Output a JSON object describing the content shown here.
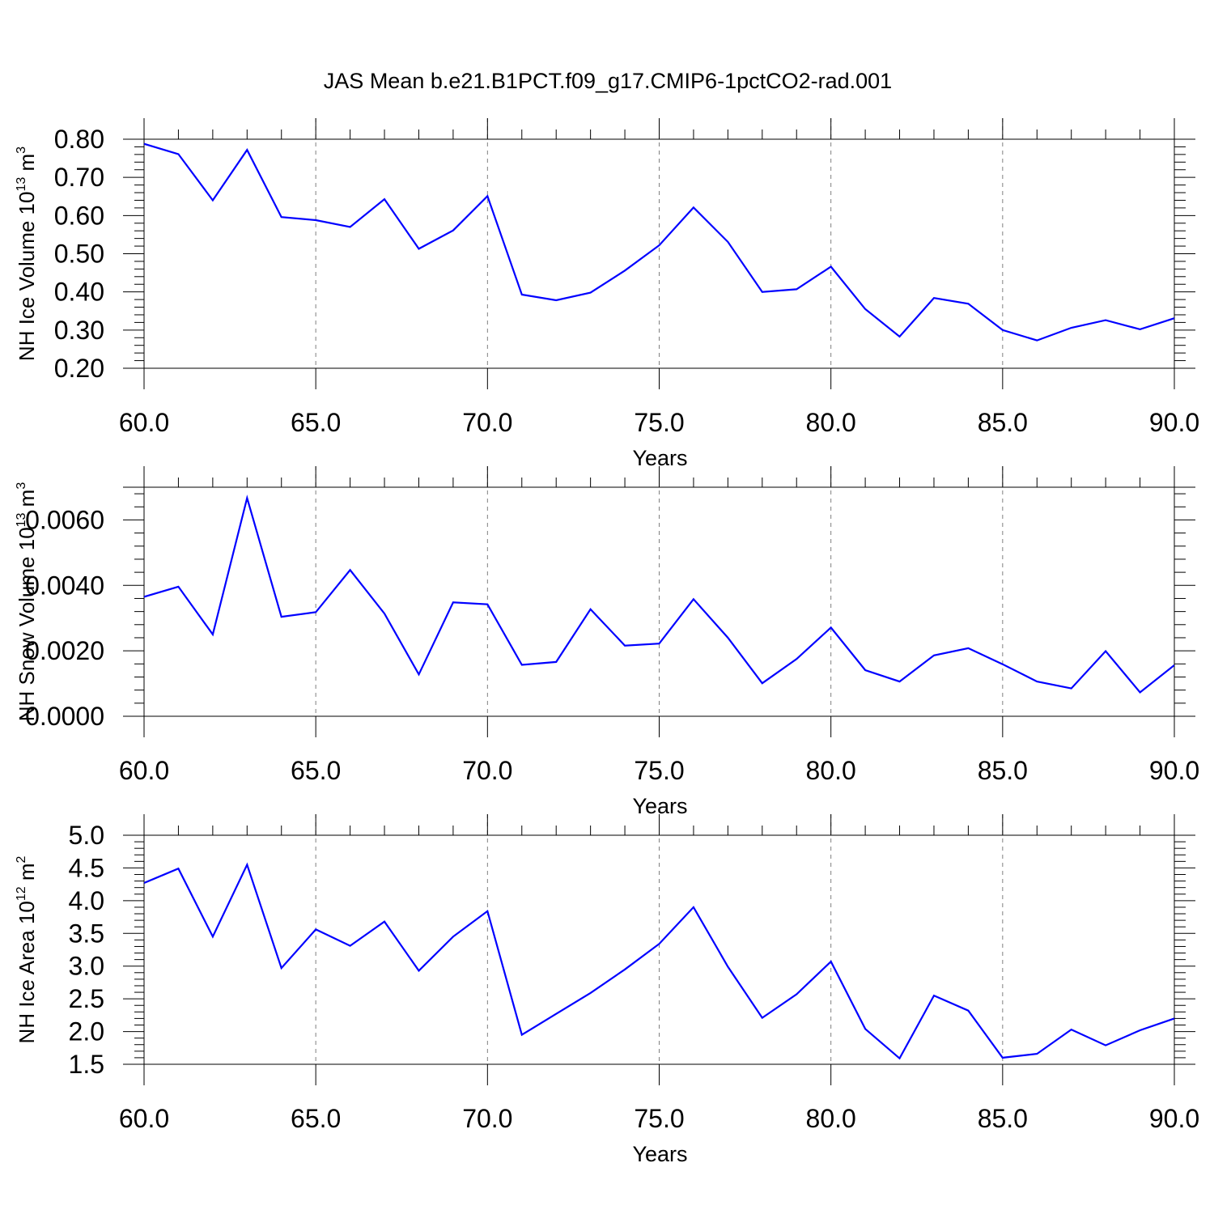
{
  "title": "JAS Mean b.e21.B1PCT.f09_g17.CMIP6-1pctCO2-rad.001",
  "colors": {
    "line": "#0000ff",
    "axis": "#000000",
    "grid": "#7f7f7f",
    "background": "#ffffff"
  },
  "chart_data": [
    {
      "type": "line",
      "xlabel": "Years",
      "ylabel": {
        "prefix": "NH Ice Volume 10",
        "exp": "13",
        "mid": " m",
        "unit_exp": "3"
      },
      "xlim": [
        60,
        90
      ],
      "ylim": [
        0.2,
        0.8
      ],
      "xticks": [
        60,
        65,
        70,
        75,
        80,
        85,
        90
      ],
      "xtick_labels": [
        "60.0",
        "65.0",
        "70.0",
        "75.0",
        "80.0",
        "85.0",
        "90.0"
      ],
      "yticks": [
        0.2,
        0.3,
        0.4,
        0.5,
        0.6,
        0.7,
        0.8
      ],
      "ytick_labels": [
        "0.20",
        "0.30",
        "0.40",
        "0.50",
        "0.60",
        "0.70",
        "0.80"
      ],
      "grid": "vertical dashed at major x ticks",
      "x": [
        60,
        61,
        62,
        63,
        64,
        65,
        66,
        67,
        68,
        69,
        70,
        71,
        72,
        73,
        74,
        75,
        76,
        77,
        78,
        79,
        80,
        81,
        82,
        83,
        84,
        85,
        86,
        87,
        88,
        89,
        90
      ],
      "series": [
        {
          "values": [
            0.788,
            0.761,
            0.64,
            0.772,
            0.596,
            0.588,
            0.57,
            0.643,
            0.513,
            0.561,
            0.651,
            0.393,
            0.378,
            0.398,
            0.456,
            0.522,
            0.621,
            0.531,
            0.4,
            0.407,
            0.466,
            0.355,
            0.283,
            0.384,
            0.369,
            0.3,
            0.273,
            0.306,
            0.326,
            0.302,
            0.331
          ]
        }
      ]
    },
    {
      "type": "line",
      "xlabel": "Years",
      "ylabel": {
        "prefix": "NH Snow Volume 10",
        "exp": "13",
        "mid": " m",
        "unit_exp": "3"
      },
      "xlim": [
        60,
        90
      ],
      "ylim": [
        0,
        0.007
      ],
      "xticks": [
        60,
        65,
        70,
        75,
        80,
        85,
        90
      ],
      "xtick_labels": [
        "60.0",
        "65.0",
        "70.0",
        "75.0",
        "80.0",
        "85.0",
        "90.0"
      ],
      "yticks": [
        0,
        0.002,
        0.004,
        0.006
      ],
      "ytick_labels": [
        "0.0000",
        "0.0020",
        "0.0040",
        "0.0060"
      ],
      "grid": "vertical dashed at major x ticks",
      "x": [
        60,
        61,
        62,
        63,
        64,
        65,
        66,
        67,
        68,
        69,
        70,
        71,
        72,
        73,
        74,
        75,
        76,
        77,
        78,
        79,
        80,
        81,
        82,
        83,
        84,
        85,
        86,
        87,
        88,
        89,
        90
      ],
      "series": [
        {
          "values": [
            0.00365,
            0.00396,
            0.0025,
            0.00667,
            0.00304,
            0.00318,
            0.00447,
            0.00314,
            0.00128,
            0.00348,
            0.00342,
            0.00157,
            0.00166,
            0.00327,
            0.00216,
            0.00222,
            0.00358,
            0.0024,
            0.00101,
            0.00175,
            0.00271,
            0.00141,
            0.00106,
            0.00186,
            0.00208,
            0.00159,
            0.00106,
            0.00085,
            0.00199,
            0.00073,
            0.00156
          ]
        }
      ]
    },
    {
      "type": "line",
      "xlabel": "Years",
      "ylabel": {
        "prefix": "NH Ice Area 10",
        "exp": "12",
        "mid": " m",
        "unit_exp": "2"
      },
      "xlim": [
        60,
        90
      ],
      "ylim": [
        1.5,
        5.0
      ],
      "xticks": [
        60,
        65,
        70,
        75,
        80,
        85,
        90
      ],
      "xtick_labels": [
        "60.0",
        "65.0",
        "70.0",
        "75.0",
        "80.0",
        "85.0",
        "90.0"
      ],
      "yticks": [
        1.5,
        2.0,
        2.5,
        3.0,
        3.5,
        4.0,
        4.5,
        5.0
      ],
      "ytick_labels": [
        "1.5",
        "2.0",
        "2.5",
        "3.0",
        "3.5",
        "4.0",
        "4.5",
        "5.0"
      ],
      "grid": "vertical dashed at major x ticks",
      "x": [
        60,
        61,
        62,
        63,
        64,
        65,
        66,
        67,
        68,
        69,
        70,
        71,
        72,
        73,
        74,
        75,
        76,
        77,
        78,
        79,
        80,
        81,
        82,
        83,
        84,
        85,
        86,
        87,
        88,
        89,
        90
      ],
      "series": [
        {
          "values": [
            4.27,
            4.49,
            3.45,
            4.55,
            2.97,
            3.56,
            3.31,
            3.68,
            2.93,
            3.45,
            3.84,
            1.95,
            2.27,
            2.59,
            2.95,
            3.34,
            3.9,
            2.99,
            2.21,
            2.57,
            3.07,
            2.04,
            1.59,
            2.55,
            2.32,
            1.6,
            1.66,
            2.03,
            1.79,
            2.02,
            2.2
          ]
        }
      ]
    }
  ]
}
